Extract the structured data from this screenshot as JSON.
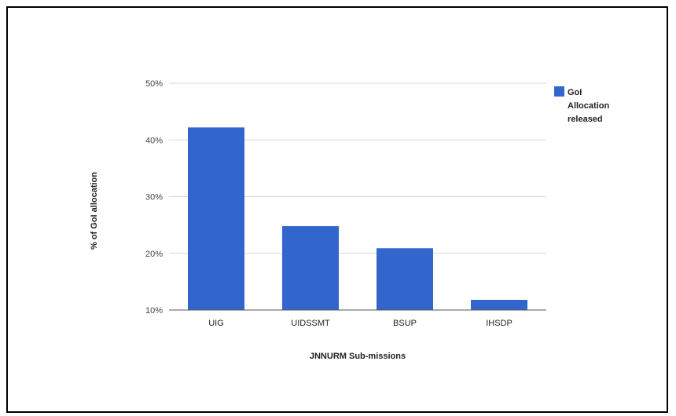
{
  "chart_data": {
    "type": "bar",
    "title": "",
    "xlabel": "JNNURM Sub-missions",
    "ylabel": "% of GoI allocation",
    "categories": [
      "UIG",
      "UIDSSMT",
      "BSUP",
      "IHSDP"
    ],
    "series": [
      {
        "name": "GoI Allocation released",
        "values": [
          42.2,
          24.8,
          20.9,
          11.8
        ],
        "color": "#3366cc"
      }
    ],
    "ylim": [
      10,
      50
    ],
    "yticks": [
      10,
      20,
      30,
      40,
      50
    ],
    "ytick_labels": [
      "10%",
      "20%",
      "30%",
      "40%",
      "50%"
    ],
    "grid": true,
    "legend": {
      "position": "right",
      "lines": [
        "GoI",
        "Allocation",
        "released"
      ]
    }
  }
}
